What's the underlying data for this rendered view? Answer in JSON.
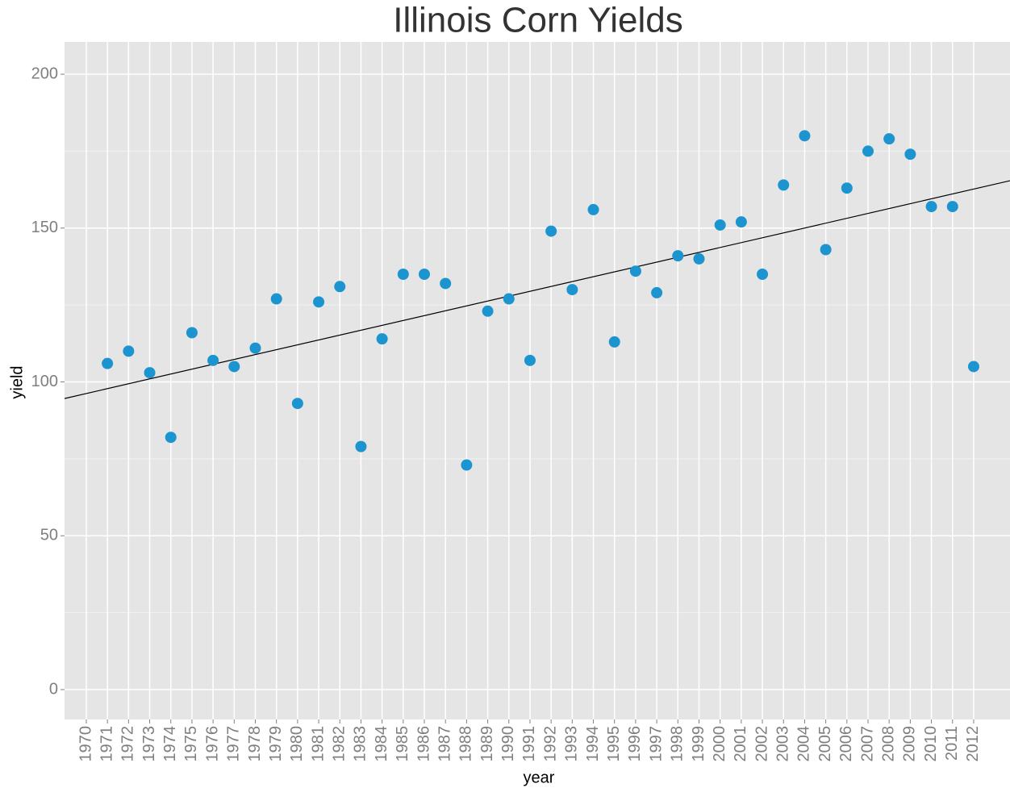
{
  "chart_data": {
    "type": "scatter",
    "title": "Illinois Corn Yields",
    "x_label": "year",
    "y_label": "yield",
    "x": [
      1971,
      1972,
      1973,
      1974,
      1975,
      1976,
      1977,
      1978,
      1979,
      1980,
      1981,
      1982,
      1983,
      1984,
      1985,
      1986,
      1987,
      1988,
      1989,
      1990,
      1991,
      1992,
      1993,
      1994,
      1995,
      1996,
      1997,
      1998,
      1999,
      2000,
      2001,
      2002,
      2003,
      2004,
      2005,
      2006,
      2007,
      2008,
      2009,
      2010,
      2011,
      2012
    ],
    "values": [
      106,
      110,
      103,
      82,
      116,
      107,
      105,
      111,
      127,
      93,
      126,
      131,
      79,
      114,
      135,
      135,
      132,
      73,
      123,
      127,
      107,
      149,
      130,
      156,
      113,
      136,
      129,
      141,
      140,
      151,
      152,
      135,
      164,
      180,
      143,
      163,
      175,
      179,
      174,
      157,
      157,
      105
    ],
    "color": "#1b94cf",
    "trend": {
      "x": [
        1968.97,
        2013.72
      ],
      "values": [
        94.6,
        165.4
      ],
      "color": "#000000"
    },
    "xlim": [
      1968.97,
      2013.72
    ],
    "xticks": [
      1970,
      1971,
      1972,
      1973,
      1974,
      1975,
      1976,
      1977,
      1978,
      1979,
      1980,
      1981,
      1982,
      1983,
      1984,
      1985,
      1986,
      1987,
      1988,
      1989,
      1990,
      1991,
      1992,
      1993,
      1994,
      1995,
      1996,
      1997,
      1998,
      1999,
      2000,
      2001,
      2002,
      2003,
      2004,
      2005,
      2006,
      2007,
      2008,
      2009,
      2010,
      2011,
      2012
    ],
    "ylim": [
      -9.7,
      210.5
    ],
    "yticks": [
      0,
      50,
      100,
      150,
      200
    ],
    "grid": true
  }
}
